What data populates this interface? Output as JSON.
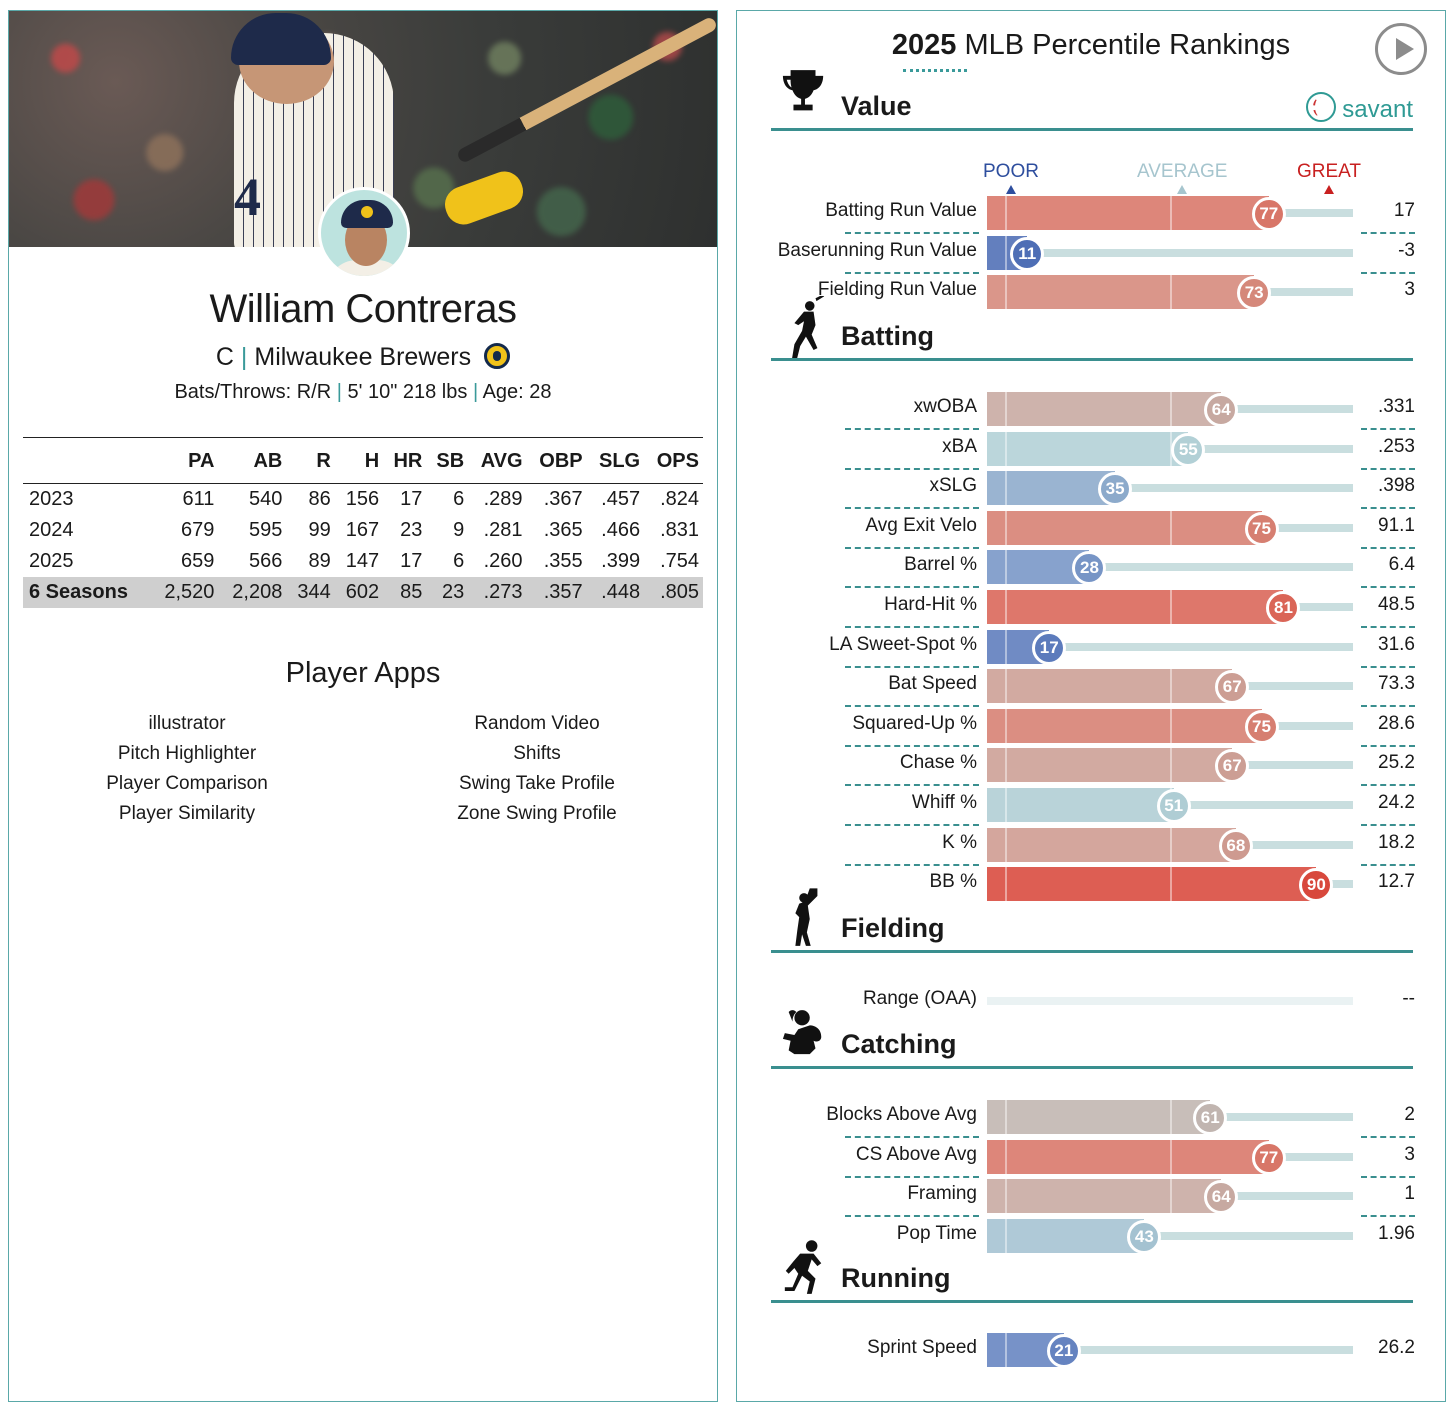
{
  "player": {
    "name": "William Contreras",
    "position": "C",
    "team": "Milwaukee Brewers",
    "bats_throws": "Bats/Throws: R/R",
    "height_weight": "5' 10\" 218 lbs",
    "age": "Age: 28",
    "separator": "|"
  },
  "stats": {
    "headers": [
      "",
      "PA",
      "AB",
      "R",
      "H",
      "HR",
      "SB",
      "AVG",
      "OBP",
      "SLG",
      "OPS"
    ],
    "rows": [
      [
        "2023",
        "611",
        "540",
        "86",
        "156",
        "17",
        "6",
        ".289",
        ".367",
        ".457",
        ".824"
      ],
      [
        "2024",
        "679",
        "595",
        "99",
        "167",
        "23",
        "9",
        ".281",
        ".365",
        ".466",
        ".831"
      ],
      [
        "2025",
        "659",
        "566",
        "89",
        "147",
        "17",
        "6",
        ".260",
        ".355",
        ".399",
        ".754"
      ],
      [
        "6 Seasons",
        "2,520",
        "2,208",
        "344",
        "602",
        "85",
        "23",
        ".273",
        ".357",
        ".448",
        ".805"
      ]
    ]
  },
  "apps": {
    "title": "Player Apps",
    "left": [
      "illustrator",
      "Pitch Highlighter",
      "Player Comparison",
      "Player Similarity"
    ],
    "right": [
      "Random Video",
      "Shifts",
      "Swing Take Profile",
      "Zone Swing Profile"
    ]
  },
  "percentiles": {
    "title_year": "2025",
    "title_rest": "MLB Percentile Rankings",
    "brand": "savant",
    "scale": {
      "poor": "POOR",
      "average": "AVERAGE",
      "great": "GREAT"
    },
    "colors": {
      "poor": "#2e4e9e",
      "average": "#a6c5ce",
      "great": "#c82020",
      "accent": "#3a8f8f"
    },
    "sections": [
      {
        "title": "Value",
        "icon": "trophy-icon",
        "metrics": [
          {
            "label": "Batting Run Value",
            "pct": 77,
            "value": "17"
          },
          {
            "label": "Baserunning Run Value",
            "pct": 11,
            "value": "-3"
          },
          {
            "label": "Fielding Run Value",
            "pct": 73,
            "value": "3"
          }
        ]
      },
      {
        "title": "Batting",
        "icon": "batter-icon",
        "metrics": [
          {
            "label": "xwOBA",
            "pct": 64,
            "value": ".331"
          },
          {
            "label": "xBA",
            "pct": 55,
            "value": ".253"
          },
          {
            "label": "xSLG",
            "pct": 35,
            "value": ".398"
          },
          {
            "label": "Avg Exit Velo",
            "pct": 75,
            "value": "91.1"
          },
          {
            "label": "Barrel %",
            "pct": 28,
            "value": "6.4"
          },
          {
            "label": "Hard-Hit %",
            "pct": 81,
            "value": "48.5"
          },
          {
            "label": "LA Sweet-Spot %",
            "pct": 17,
            "value": "31.6"
          },
          {
            "label": "Bat Speed",
            "pct": 67,
            "value": "73.3"
          },
          {
            "label": "Squared-Up %",
            "pct": 75,
            "value": "28.6"
          },
          {
            "label": "Chase %",
            "pct": 67,
            "value": "25.2"
          },
          {
            "label": "Whiff %",
            "pct": 51,
            "value": "24.2"
          },
          {
            "label": "K %",
            "pct": 68,
            "value": "18.2"
          },
          {
            "label": "BB %",
            "pct": 90,
            "value": "12.7"
          }
        ]
      },
      {
        "title": "Fielding",
        "icon": "fielder-icon",
        "metrics": [
          {
            "label": "Range (OAA)",
            "pct": null,
            "value": "--"
          }
        ]
      },
      {
        "title": "Catching",
        "icon": "catcher-icon",
        "metrics": [
          {
            "label": "Blocks Above Avg",
            "pct": 61,
            "value": "2"
          },
          {
            "label": "CS Above Avg",
            "pct": 77,
            "value": "3"
          },
          {
            "label": "Framing",
            "pct": 64,
            "value": "1"
          },
          {
            "label": "Pop Time",
            "pct": 43,
            "value": "1.96"
          }
        ]
      },
      {
        "title": "Running",
        "icon": "runner-icon",
        "metrics": [
          {
            "label": "Sprint Speed",
            "pct": 21,
            "value": "26.2"
          }
        ]
      }
    ]
  }
}
